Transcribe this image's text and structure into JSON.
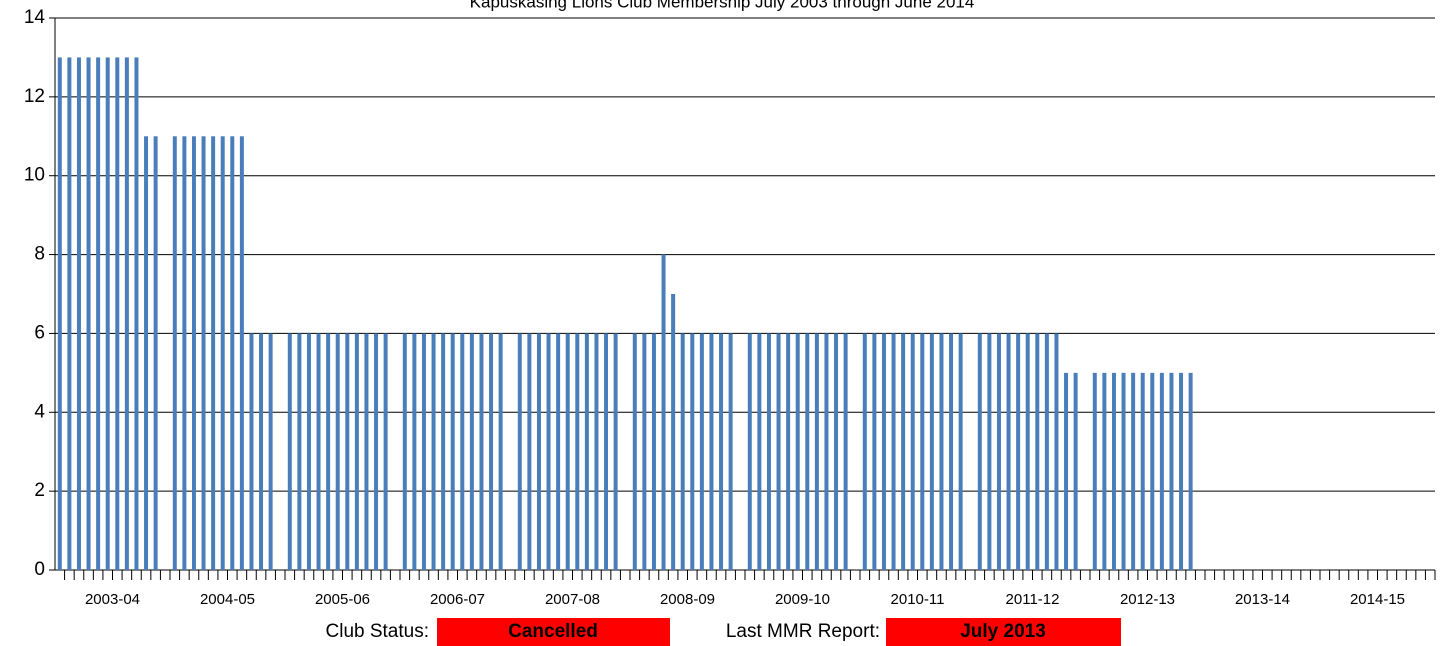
{
  "chart_data": {
    "type": "bar",
    "title": "Kapuskasing Lions Club Membership July 2003 through June 2014",
    "categories": [
      "2003-04",
      "2004-05",
      "2005-06",
      "2006-07",
      "2007-08",
      "2008-09",
      "2009-10",
      "2010-11",
      "2011-12",
      "2012-13",
      "2013-14",
      "2014-15"
    ],
    "values": [
      [
        13,
        13,
        13,
        13,
        13,
        13,
        13,
        13,
        13,
        11,
        11,
        null
      ],
      [
        11,
        11,
        11,
        11,
        11,
        11,
        11,
        11,
        6,
        6,
        6,
        null
      ],
      [
        6,
        6,
        6,
        6,
        6,
        6,
        6,
        6,
        6,
        6,
        6,
        null
      ],
      [
        6,
        6,
        6,
        6,
        6,
        6,
        6,
        6,
        6,
        6,
        6,
        null
      ],
      [
        6,
        6,
        6,
        6,
        6,
        6,
        6,
        6,
        6,
        6,
        6,
        null
      ],
      [
        6,
        6,
        6,
        8,
        7,
        6,
        6,
        6,
        6,
        6,
        6,
        null
      ],
      [
        6,
        6,
        6,
        6,
        6,
        6,
        6,
        6,
        6,
        6,
        6,
        null
      ],
      [
        6,
        6,
        6,
        6,
        6,
        6,
        6,
        6,
        6,
        6,
        6,
        null
      ],
      [
        6,
        6,
        6,
        6,
        6,
        6,
        6,
        6,
        6,
        5,
        5,
        null
      ],
      [
        5,
        5,
        5,
        5,
        5,
        5,
        5,
        5,
        5,
        5,
        5,
        null
      ],
      [
        null,
        null,
        null,
        null,
        null,
        null,
        null,
        null,
        null,
        null,
        null,
        null
      ],
      [
        null,
        null,
        null,
        null,
        null,
        null,
        null,
        null,
        null,
        null,
        null,
        null
      ]
    ],
    "color": "#4a7ebb",
    "ylim": [
      0,
      14
    ],
    "yticks": [
      0,
      2,
      4,
      6,
      8,
      10,
      12,
      14
    ],
    "grid": true
  },
  "footer": {
    "status_label": "Club Status:",
    "status": "Cancelled",
    "report_label": "Last MMR Report:",
    "report": "July 2013",
    "box_color": "#ff0000"
  }
}
